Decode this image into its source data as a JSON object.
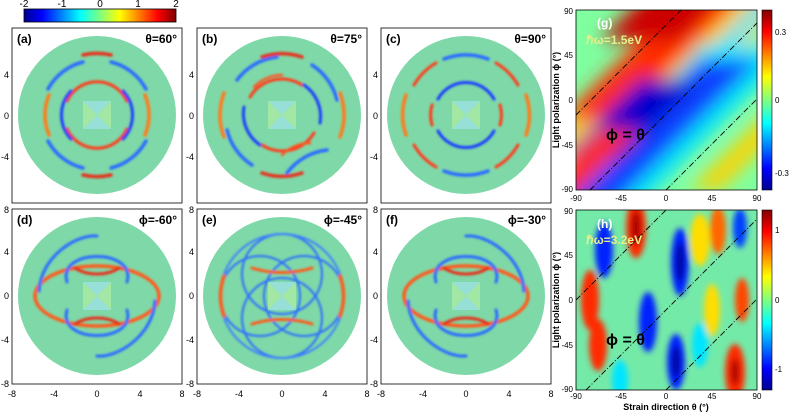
{
  "top_colorbar": {
    "ticks": [
      "-2",
      "-1",
      "0",
      "1",
      "2"
    ],
    "range": [
      -2,
      2
    ]
  },
  "chart_data": [
    {
      "type": "heatmap",
      "panel": "a",
      "label": "(a)",
      "param": "θ=60°",
      "param_value_deg": 60,
      "family": "strain",
      "xlim": [
        -8,
        8
      ],
      "ylim": [
        -8,
        8
      ],
      "xticks": [],
      "yticks": [
        "4",
        "0",
        "-4"
      ]
    },
    {
      "type": "heatmap",
      "panel": "b",
      "label": "(b)",
      "param": "θ=75°",
      "param_value_deg": 75,
      "family": "strain",
      "xlim": [
        -8,
        8
      ],
      "ylim": [
        -8,
        8
      ],
      "xticks": [],
      "yticks": [
        "4",
        "0",
        "-4"
      ]
    },
    {
      "type": "heatmap",
      "panel": "c",
      "label": "(c)",
      "param": "θ=90°",
      "param_value_deg": 90,
      "family": "strain",
      "xlim": [
        -8,
        8
      ],
      "ylim": [
        -8,
        8
      ],
      "xticks": [],
      "yticks": [
        "4",
        "0",
        "-4"
      ]
    },
    {
      "type": "heatmap",
      "panel": "d",
      "label": "(d)",
      "param": "ϕ=-60°",
      "param_value_deg": -60,
      "family": "polarization",
      "xlim": [
        -8,
        8
      ],
      "ylim": [
        -8,
        8
      ],
      "xticks": [
        "-8",
        "-4",
        "0",
        "4",
        "8"
      ],
      "yticks": [
        "8",
        "4",
        "0",
        "-4",
        "-8"
      ]
    },
    {
      "type": "heatmap",
      "panel": "e",
      "label": "(e)",
      "param": "ϕ=-45°",
      "param_value_deg": -45,
      "family": "polarization",
      "xlim": [
        -8,
        8
      ],
      "ylim": [
        -8,
        8
      ],
      "xticks": [
        "-8",
        "-4",
        "0",
        "4",
        "8"
      ],
      "yticks": [
        "8",
        "4",
        "0",
        "-4",
        "-8"
      ]
    },
    {
      "type": "heatmap",
      "panel": "f",
      "label": "(f)",
      "param": "ϕ=-30°",
      "param_value_deg": -30,
      "family": "polarization",
      "xlim": [
        -8,
        8
      ],
      "ylim": [
        -8,
        8
      ],
      "xticks": [
        "-8",
        "-4",
        "0",
        "4",
        "8"
      ],
      "yticks": [
        "8",
        "4",
        "0",
        "-4",
        "-8"
      ]
    },
    {
      "type": "heatmap",
      "panel": "g",
      "label": "(g)",
      "energy": "ℏω=1.5eV",
      "line_label": "ϕ = θ",
      "ylabel": "Light polarization ϕ (°)",
      "xlim": [
        -90,
        90
      ],
      "ylim": [
        -90,
        90
      ],
      "xticks": [
        "-90",
        "-45",
        "0",
        "45",
        "90"
      ],
      "yticks": [
        "90",
        "45",
        "0",
        "-45",
        "-90"
      ],
      "colorbar": {
        "range": [
          -0.3,
          0.3
        ],
        "ticks": [
          "0.3",
          "0",
          "-0.3"
        ]
      }
    },
    {
      "type": "heatmap",
      "panel": "h",
      "label": "(h)",
      "energy": "ℏω=3.2eV",
      "line_label": "ϕ = θ",
      "xlabel": "Strain direction θ (°)",
      "ylabel": "Light polarization ϕ (°)",
      "xlim": [
        -90,
        90
      ],
      "ylim": [
        -90,
        90
      ],
      "xticks": [
        "-90",
        "-45",
        "0",
        "45",
        "90"
      ],
      "yticks": [
        "90",
        "45",
        "0",
        "-45",
        "-90"
      ],
      "colorbar": {
        "range": [
          -1,
          1
        ],
        "ticks": [
          "1",
          "0",
          "-1"
        ]
      }
    }
  ]
}
